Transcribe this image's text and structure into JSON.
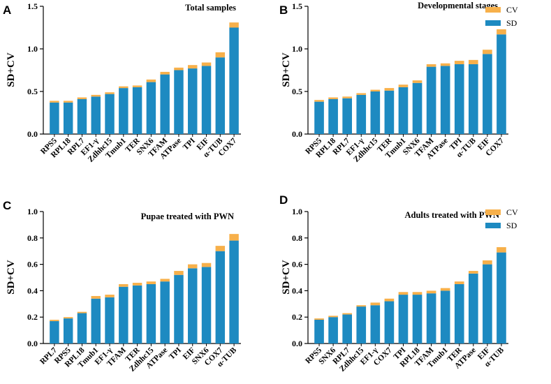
{
  "colors": {
    "sd": "#1d8ac1",
    "cv": "#f7b04a",
    "axis": "#000000"
  },
  "legend": {
    "cv_label": "CV",
    "sd_label": "SD"
  },
  "chart_data": [
    {
      "panel": "A",
      "type": "bar",
      "stacked": true,
      "title": "Total samples",
      "xlabel": "",
      "ylabel": "SD+CV",
      "ylim": [
        0,
        1.5
      ],
      "yticks": [
        "0.0",
        "0.5",
        "1.0",
        "1.5"
      ],
      "categories": [
        "RPS5",
        "RPL18",
        "RPL7",
        "EF1-γ",
        "Zdhhc15",
        "Tmub1",
        "TER",
        "SNX6",
        "TFAM",
        "ATPase",
        "TPI",
        "EIF",
        "α-TUB",
        "COX7"
      ],
      "series": [
        {
          "name": "SD",
          "values": [
            0.37,
            0.37,
            0.41,
            0.44,
            0.47,
            0.54,
            0.55,
            0.61,
            0.7,
            0.75,
            0.77,
            0.8,
            0.9,
            1.25
          ]
        },
        {
          "name": "CV",
          "values": [
            0.02,
            0.02,
            0.02,
            0.02,
            0.02,
            0.02,
            0.02,
            0.03,
            0.03,
            0.03,
            0.04,
            0.04,
            0.06,
            0.06
          ]
        }
      ],
      "show_legend": false
    },
    {
      "panel": "B",
      "type": "bar",
      "stacked": true,
      "title": "Developmental stages",
      "xlabel": "",
      "ylabel": "SD+CV",
      "ylim": [
        0,
        1.5
      ],
      "yticks": [
        "0.0",
        "0.5",
        "1.0",
        "1.5"
      ],
      "categories": [
        "RPS5",
        "RPL18",
        "RPL7",
        "EF1-γ",
        "Zdhhc15",
        "TER",
        "Tmub1",
        "SNX6",
        "TFAM",
        "ATPase",
        "TPI",
        "α-TUB",
        "EIF",
        "COX7"
      ],
      "series": [
        {
          "name": "SD",
          "values": [
            0.38,
            0.41,
            0.42,
            0.46,
            0.5,
            0.51,
            0.55,
            0.6,
            0.79,
            0.8,
            0.82,
            0.82,
            0.94,
            1.17
          ]
        },
        {
          "name": "CV",
          "values": [
            0.02,
            0.02,
            0.02,
            0.02,
            0.02,
            0.03,
            0.03,
            0.03,
            0.03,
            0.03,
            0.04,
            0.05,
            0.05,
            0.06
          ]
        }
      ],
      "show_legend": true
    },
    {
      "panel": "C",
      "type": "bar",
      "stacked": true,
      "title": "Pupae treated with PWN",
      "xlabel": "",
      "ylabel": "SD+CV",
      "ylim": [
        0,
        1.0
      ],
      "yticks": [
        "0.0",
        "0.2",
        "0.4",
        "0.6",
        "0.8",
        "1.0"
      ],
      "categories": [
        "RPL7",
        "RPS5",
        "RPL18",
        "Tmub1",
        "EF1-γ",
        "TFAM",
        "TER",
        "Zdhhc15",
        "ATPase",
        "TPI",
        "EIF",
        "SNX6",
        "COX7",
        "α-TUB"
      ],
      "series": [
        {
          "name": "SD",
          "values": [
            0.17,
            0.19,
            0.23,
            0.34,
            0.35,
            0.43,
            0.44,
            0.45,
            0.47,
            0.52,
            0.57,
            0.58,
            0.7,
            0.78
          ]
        },
        {
          "name": "CV",
          "values": [
            0.01,
            0.01,
            0.01,
            0.02,
            0.02,
            0.02,
            0.02,
            0.02,
            0.02,
            0.03,
            0.03,
            0.03,
            0.04,
            0.05
          ]
        }
      ],
      "show_legend": false
    },
    {
      "panel": "D",
      "type": "bar",
      "stacked": true,
      "title": "Adults treated with PWN",
      "xlabel": "",
      "ylabel": "SD+CV",
      "ylim": [
        0,
        1.0
      ],
      "yticks": [
        "0.0",
        "0.2",
        "0.4",
        "0.6",
        "0.8",
        "1.0"
      ],
      "categories": [
        "RPS5",
        "SNX6",
        "RPL7",
        "Zdhhc15",
        "EF1-γ",
        "COX7",
        "TPI",
        "RPL18",
        "TFAM",
        "Tmub1",
        "TER",
        "ATPase",
        "EIF",
        "α-TUB"
      ],
      "series": [
        {
          "name": "SD",
          "values": [
            0.18,
            0.2,
            0.22,
            0.28,
            0.29,
            0.32,
            0.37,
            0.37,
            0.38,
            0.4,
            0.45,
            0.53,
            0.6,
            0.69
          ]
        },
        {
          "name": "CV",
          "values": [
            0.01,
            0.01,
            0.01,
            0.01,
            0.02,
            0.02,
            0.02,
            0.02,
            0.02,
            0.02,
            0.02,
            0.02,
            0.03,
            0.04
          ]
        }
      ],
      "show_legend": true
    }
  ]
}
